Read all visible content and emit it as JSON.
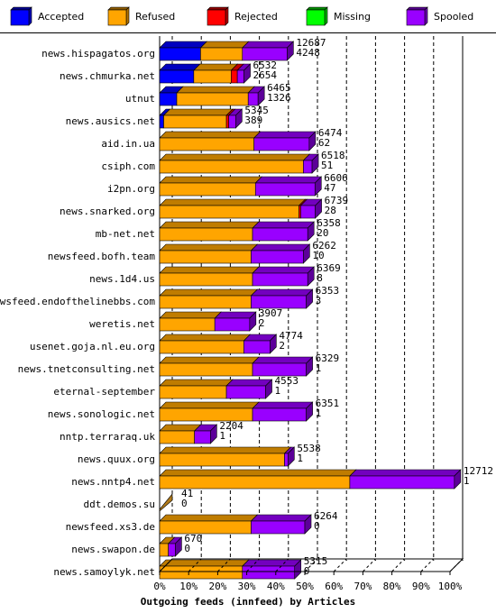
{
  "chart_data": {
    "type": "bar",
    "title": "Outgoing feeds (innfeed) by Articles",
    "legend": [
      {
        "name": "Accepted",
        "color": "#0000ff"
      },
      {
        "name": "Refused",
        "color": "#ffa500"
      },
      {
        "name": "Rejected",
        "color": "#ff0000"
      },
      {
        "name": "Missing",
        "color": "#00ff00"
      },
      {
        "name": "Spooled",
        "color": "#9900ff"
      }
    ],
    "x_ticks": [
      "0%",
      "10%",
      "20%",
      "30%",
      "40%",
      "50%",
      "60%",
      "70%",
      "80%",
      "90%",
      "100%"
    ],
    "xlim": [
      0,
      100
    ],
    "rows": [
      {
        "site": "news.hispagatos.org",
        "accepted": 1410,
        "refused": 1440,
        "rejected": 0,
        "missing": 0,
        "spooled": 1540,
        "label_total": "12687",
        "label_count": "4248"
      },
      {
        "site": "news.chmurka.net",
        "accepted": 1175,
        "refused": 1290,
        "rejected": 210,
        "missing": 0,
        "spooled": 230,
        "label_total": "6532",
        "label_count": "2654"
      },
      {
        "site": "utnut",
        "accepted": 590,
        "refused": 2460,
        "rejected": 0,
        "missing": 0,
        "spooled": 340,
        "label_total": "6465",
        "label_count": "1326"
      },
      {
        "site": "news.ausics.net",
        "accepted": 140,
        "refused": 2160,
        "rejected": 80,
        "missing": 0,
        "spooled": 240,
        "label_total": "5345",
        "label_count": "389"
      },
      {
        "site": "aid.in.ua",
        "accepted": 0,
        "refused": 3250,
        "rejected": 0,
        "missing": 0,
        "spooled": 1900,
        "label_total": "6474",
        "label_count": "62"
      },
      {
        "site": "csiph.com",
        "accepted": 0,
        "refused": 4950,
        "rejected": 0,
        "missing": 0,
        "spooled": 300,
        "label_total": "6518",
        "label_count": "51"
      },
      {
        "site": "i2pn.org",
        "accepted": 0,
        "refused": 3300,
        "rejected": 0,
        "missing": 0,
        "spooled": 2050,
        "label_total": "6606",
        "label_count": "47"
      },
      {
        "site": "news.snarked.org",
        "accepted": 0,
        "refused": 4800,
        "rejected": 60,
        "missing": 0,
        "spooled": 500,
        "label_total": "6739",
        "label_count": "28"
      },
      {
        "site": "mb-net.net",
        "accepted": 0,
        "refused": 3200,
        "rejected": 0,
        "missing": 0,
        "spooled": 1900,
        "label_total": "6358",
        "label_count": "20"
      },
      {
        "site": "newsfeed.bofh.team",
        "accepted": 0,
        "refused": 3150,
        "rejected": 0,
        "missing": 0,
        "spooled": 1800,
        "label_total": "6262",
        "label_count": "10"
      },
      {
        "site": "news.1d4.us",
        "accepted": 0,
        "refused": 3200,
        "rejected": 0,
        "missing": 0,
        "spooled": 1900,
        "label_total": "6369",
        "label_count": "8"
      },
      {
        "site": "newsfeed.endofthelinebbs.com",
        "accepted": 0,
        "refused": 3150,
        "rejected": 0,
        "missing": 0,
        "spooled": 1900,
        "label_total": "6353",
        "label_count": "3"
      },
      {
        "site": "weretis.net",
        "accepted": 0,
        "refused": 1900,
        "rejected": 0,
        "missing": 0,
        "spooled": 1200,
        "label_total": "3907",
        "label_count": "2"
      },
      {
        "site": "usenet.goja.nl.eu.org",
        "accepted": 0,
        "refused": 2900,
        "rejected": 0,
        "missing": 0,
        "spooled": 900,
        "label_total": "4774",
        "label_count": "2"
      },
      {
        "site": "news.tnetconsulting.net",
        "accepted": 0,
        "refused": 3200,
        "rejected": 0,
        "missing": 0,
        "spooled": 1850,
        "label_total": "6329",
        "label_count": "1"
      },
      {
        "site": "eternal-september",
        "accepted": 0,
        "refused": 2300,
        "rejected": 0,
        "missing": 0,
        "spooled": 1350,
        "label_total": "4553",
        "label_count": "1"
      },
      {
        "site": "news.sonologic.net",
        "accepted": 0,
        "refused": 3200,
        "rejected": 0,
        "missing": 0,
        "spooled": 1850,
        "label_total": "6351",
        "label_count": "1"
      },
      {
        "site": "nntp.terraraq.uk",
        "accepted": 0,
        "refused": 1200,
        "rejected": 0,
        "missing": 0,
        "spooled": 550,
        "label_total": "2204",
        "label_count": "1"
      },
      {
        "site": "news.quux.org",
        "accepted": 0,
        "refused": 4300,
        "rejected": 0,
        "missing": 0,
        "spooled": 120,
        "label_total": "5538",
        "label_count": "1"
      },
      {
        "site": "news.nntp4.net",
        "accepted": 0,
        "refused": 6550,
        "rejected": 0,
        "missing": 0,
        "spooled": 3600,
        "label_total": "12712",
        "label_count": "1"
      },
      {
        "site": "ddt.demos.su",
        "accepted": 0,
        "refused": 0,
        "rejected": 0,
        "missing": 0,
        "spooled": 0,
        "label_total": "41",
        "label_count": "0"
      },
      {
        "site": "newsfeed.xs3.de",
        "accepted": 0,
        "refused": 3150,
        "rejected": 0,
        "missing": 0,
        "spooled": 1850,
        "label_total": "6264",
        "label_count": "0"
      },
      {
        "site": "news.swapon.de",
        "accepted": 0,
        "refused": 300,
        "rejected": 0,
        "missing": 0,
        "spooled": 240,
        "label_total": "670",
        "label_count": "0"
      },
      {
        "site": "news.samoylyk.net",
        "accepted": 0,
        "refused": 2850,
        "rejected": 0,
        "missing": 0,
        "spooled": 1800,
        "label_total": "5315",
        "label_count": "0"
      }
    ]
  }
}
